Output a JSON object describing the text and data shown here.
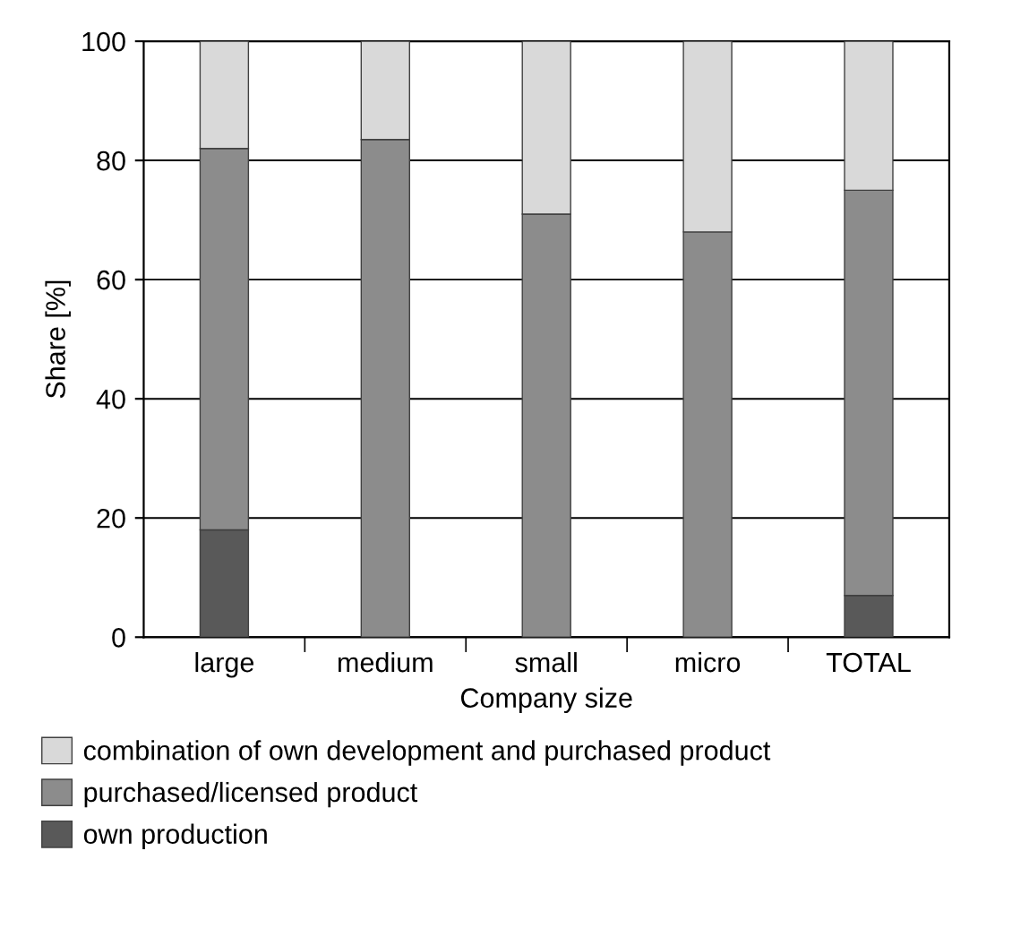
{
  "chart_data": {
    "type": "bar",
    "stacked": true,
    "xlabel": "Company size",
    "ylabel": "Share [%]",
    "categories": [
      "large",
      "medium",
      "small",
      "micro",
      "TOTAL"
    ],
    "series": [
      {
        "name": "own production",
        "color": "#595959",
        "values": [
          18,
          0,
          0,
          0,
          7
        ]
      },
      {
        "name": "purchased/licensed product",
        "color": "#8c8c8c",
        "values": [
          64,
          83.5,
          71,
          68,
          68
        ]
      },
      {
        "name": "combination of own development and purchased product",
        "color": "#d9d9d9",
        "values": [
          18,
          16.5,
          29,
          32,
          25
        ]
      }
    ],
    "ylim": [
      0,
      100
    ],
    "yticks": [
      0,
      20,
      40,
      60,
      80,
      100
    ],
    "grid": "y",
    "legend": "bottom"
  }
}
